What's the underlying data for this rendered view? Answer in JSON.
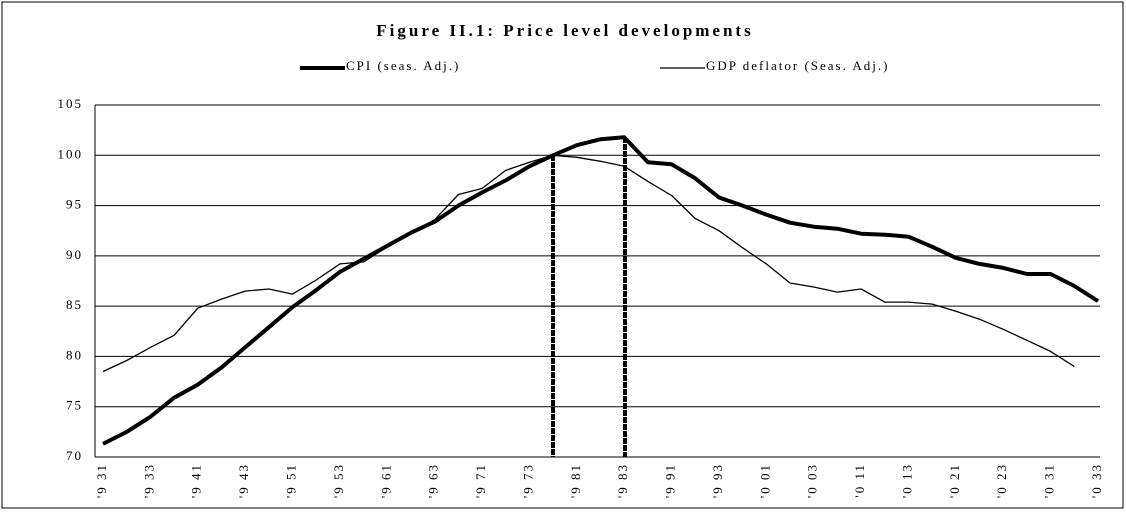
{
  "chart_data": {
    "type": "line",
    "title": "Figure II.1: Price level developments",
    "categories": [
      "'9 31",
      null,
      "'9 33",
      null,
      "'9 41",
      null,
      "'9 43",
      null,
      "'9 51",
      null,
      "'9 53",
      null,
      "'9 61",
      null,
      "'9 63",
      null,
      "'9 71",
      null,
      "'9 73",
      null,
      "'9 81",
      null,
      "'9 83",
      null,
      "'9 91",
      null,
      "'9 93",
      null,
      "'0 01",
      null,
      "'0 03",
      null,
      "'0 11",
      null,
      "'0 13",
      null,
      "'0 21",
      null,
      "'0 23",
      null,
      "'0 31",
      null,
      "'0 33"
    ],
    "series": [
      {
        "name": "CPI (seas. Adj.)",
        "color": "#000000",
        "width": 4,
        "values": [
          71.3,
          72.5,
          74.0,
          75.9,
          77.2,
          78.9,
          80.9,
          82.9,
          84.9,
          86.6,
          88.4,
          89.7,
          91.0,
          92.3,
          93.4,
          95.0,
          96.3,
          97.5,
          98.9,
          100.0,
          101.0,
          101.6,
          101.8,
          99.3,
          99.1,
          97.7,
          95.8,
          95.0,
          94.1,
          93.3,
          92.9,
          92.7,
          92.2,
          92.1,
          91.9,
          90.9,
          89.8,
          89.2,
          88.8,
          88.2,
          88.2,
          87.0,
          85.5
        ]
      },
      {
        "name": "GDP deflator (Seas. Adj.)",
        "color": "#000000",
        "width": 1.3,
        "values": [
          78.5,
          79.6,
          80.9,
          82.1,
          84.8,
          85.7,
          86.5,
          86.7,
          86.2,
          87.6,
          89.2,
          89.4,
          90.9,
          92.3,
          93.6,
          96.1,
          96.7,
          98.5,
          99.3,
          100.0,
          99.8,
          99.4,
          98.9,
          97.4,
          96.0,
          93.7,
          92.5,
          90.8,
          89.2,
          87.3,
          86.9,
          86.4,
          86.7,
          85.4,
          85.4,
          85.2,
          84.5,
          83.7,
          82.7,
          81.6,
          80.5,
          79.0,
          null
        ]
      }
    ],
    "ylim": [
      70,
      105
    ],
    "yticks": [
      70,
      75,
      80,
      85,
      90,
      95,
      100,
      105
    ],
    "grid": true
  }
}
